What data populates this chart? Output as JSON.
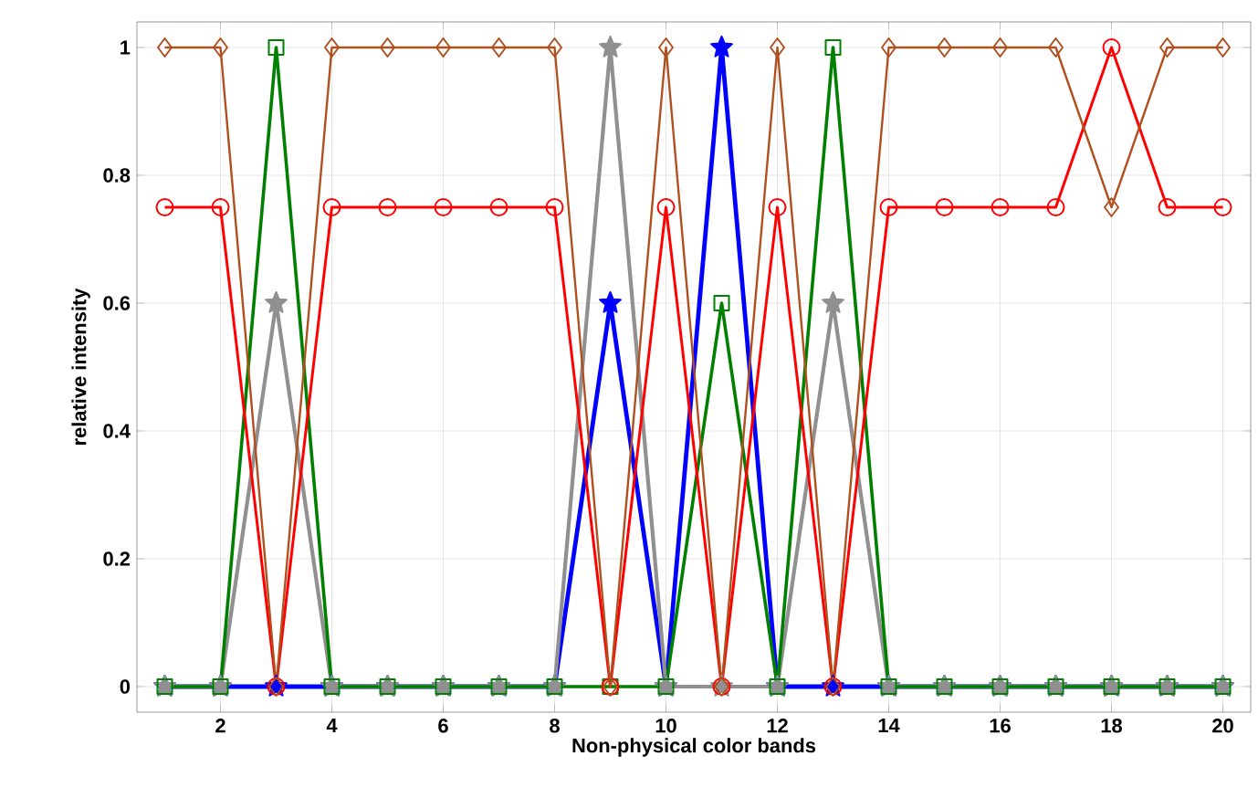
{
  "chart_data": {
    "type": "line",
    "xlabel": "Non-physical color bands",
    "ylabel": "relative intensity",
    "x": [
      1,
      2,
      3,
      4,
      5,
      6,
      7,
      8,
      9,
      10,
      11,
      12,
      13,
      14,
      15,
      16,
      17,
      18,
      19,
      20
    ],
    "series": [
      {
        "color": "#0000ff",
        "marker": "star",
        "values": [
          0,
          0,
          0,
          0,
          0,
          0,
          0,
          0,
          0.6,
          0,
          1,
          0,
          0,
          0,
          0,
          0,
          0,
          0,
          0,
          0
        ]
      },
      {
        "color": "#909090",
        "marker": "star",
        "values": [
          0,
          0,
          0.6,
          0,
          0,
          0,
          0,
          0,
          1,
          0,
          0,
          0,
          0.6,
          0,
          0,
          0,
          0,
          0,
          0,
          0
        ]
      },
      {
        "color": "#008000",
        "marker": "square",
        "values": [
          0,
          0,
          1,
          0,
          0,
          0,
          0,
          0,
          0,
          0,
          0.6,
          0,
          1,
          0,
          0,
          0,
          0,
          0,
          0,
          0
        ]
      },
      {
        "color": "#ff0000",
        "marker": "circle",
        "values": [
          0.75,
          0.75,
          0,
          0.75,
          0.75,
          0.75,
          0.75,
          0.75,
          0,
          0.75,
          0,
          0.75,
          0,
          0.75,
          0.75,
          0.75,
          0.75,
          1,
          0.75,
          0.75
        ]
      },
      {
        "color": "#b0501e",
        "marker": "diamond",
        "values": [
          1,
          1,
          0,
          1,
          1,
          1,
          1,
          1,
          0,
          1,
          0,
          1,
          0,
          1,
          1,
          1,
          1,
          0.75,
          1,
          1
        ]
      }
    ],
    "xlim": [
      0.5,
      20.5
    ],
    "ylim": [
      -0.04,
      1.04
    ],
    "xticks": [
      2,
      4,
      6,
      8,
      10,
      12,
      14,
      16,
      18,
      20
    ],
    "yticks": [
      0,
      0.2,
      0.4,
      0.6,
      0.8,
      1
    ],
    "grid": true,
    "line_style": "solid"
  }
}
